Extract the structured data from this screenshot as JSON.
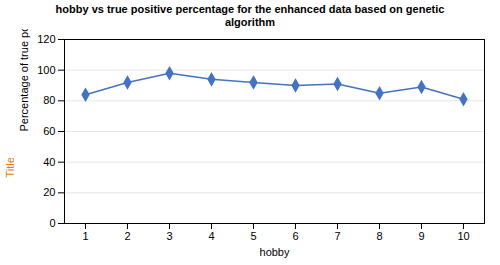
{
  "chart_data": {
    "type": "line",
    "title": "hobby vs true positive percentage for the enhanced data based on genetic\nalgorithm",
    "xlabel": "hobby",
    "ylabel": "Percentage of true positive value",
    "annotations": [
      {
        "text": "Title",
        "color": "#E97A00"
      }
    ],
    "x": [
      1,
      2,
      3,
      4,
      5,
      6,
      7,
      8,
      9,
      10
    ],
    "values": [
      84,
      92,
      98,
      94,
      92,
      90,
      91,
      85,
      89,
      81
    ],
    "color": "#4472C4",
    "marker": "diamond",
    "xlim": [
      0.5,
      10.5
    ],
    "xticks": [
      1,
      2,
      3,
      4,
      5,
      6,
      7,
      8,
      9,
      10
    ],
    "ylim": [
      0,
      120
    ],
    "yticks": [
      0,
      20,
      40,
      60,
      80,
      100,
      120
    ],
    "grid": "y"
  }
}
